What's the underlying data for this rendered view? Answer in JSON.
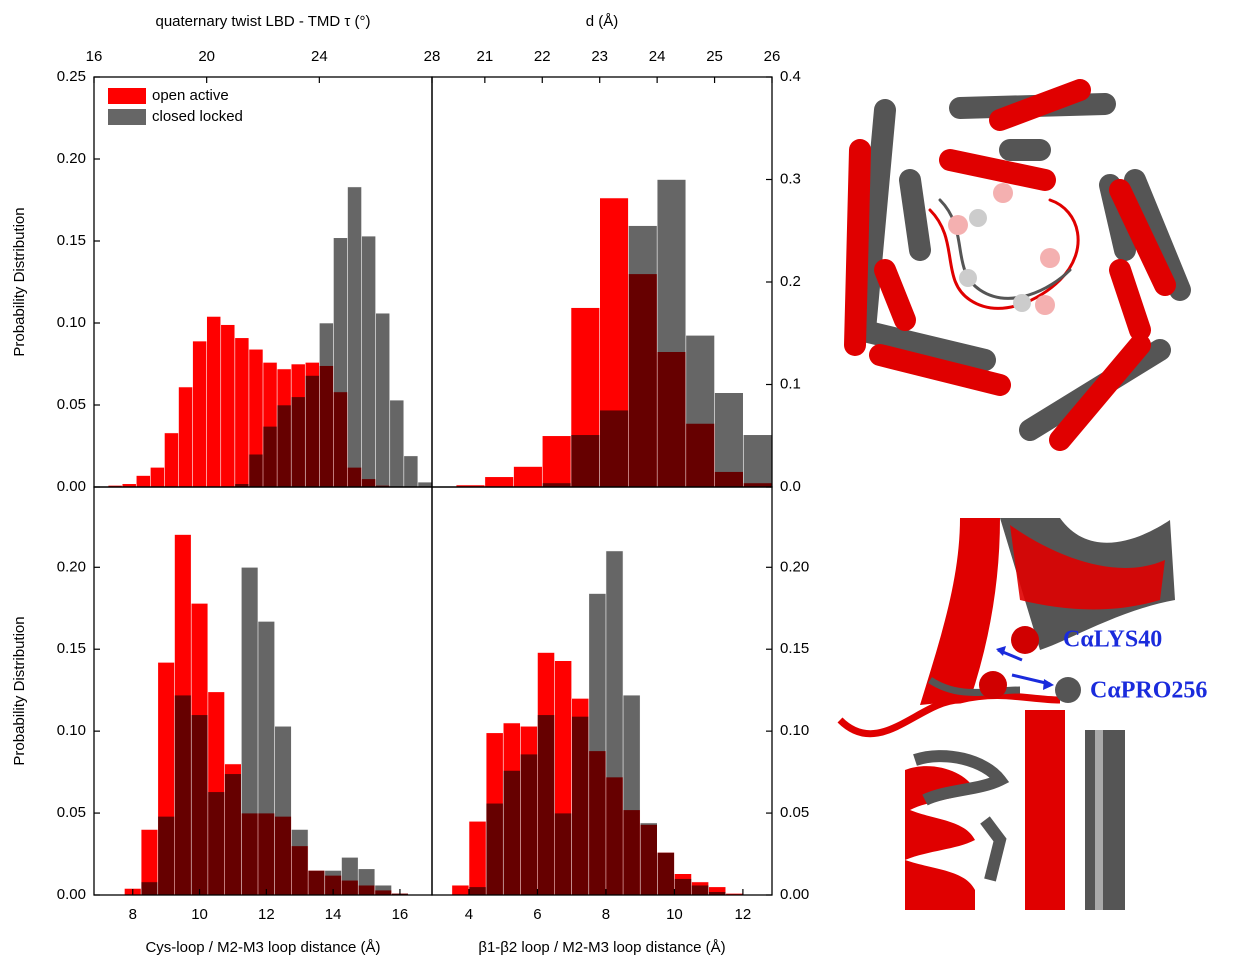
{
  "chart_data": [
    {
      "type": "histogram",
      "xlabel": "quaternary twist LBD - TMD τ (°)",
      "ylabel": "Probability Distribution",
      "legend": "upper left",
      "bins": [
        16.5,
        17,
        17.5,
        18,
        18.5,
        19,
        19.5,
        20,
        20.5,
        21,
        21.5,
        22,
        22.5,
        23,
        23.5,
        24,
        24.5,
        25,
        25.5,
        26,
        26.5,
        27,
        27.5,
        28
      ],
      "series": [
        {
          "name": "open active",
          "color": "#ff0000",
          "values": [
            0.001,
            0.002,
            0.007,
            0.012,
            0.033,
            0.061,
            0.089,
            0.104,
            0.099,
            0.091,
            0.084,
            0.076,
            0.072,
            0.075,
            0.076,
            0.074,
            0.058,
            0.012,
            0.005,
            0.001,
            0,
            0,
            0
          ]
        },
        {
          "name": "closed locked",
          "color": "#666666",
          "values": [
            0,
            0,
            0,
            0,
            0,
            0,
            0,
            0,
            0,
            0.002,
            0.02,
            0.037,
            0.05,
            0.055,
            0.068,
            0.1,
            0.152,
            0.183,
            0.153,
            0.106,
            0.053,
            0.019,
            0.003
          ]
        }
      ],
      "xlim": [
        16,
        28
      ],
      "xticks": [
        16,
        20,
        24,
        28
      ],
      "ylim": [
        0,
        0.25
      ],
      "yticks": [
        {
          "value": 0,
          "label": "0.00"
        },
        {
          "value": 0.05,
          "label": "0.05"
        },
        {
          "value": 0.1,
          "label": "0.10"
        },
        {
          "value": 0.15,
          "label": "0.15"
        },
        {
          "value": 0.2,
          "label": "0.20"
        },
        {
          "value": 0.25,
          "label": "0.25"
        }
      ]
    },
    {
      "type": "histogram",
      "xlabel": "d (Å)",
      "bins": [
        20.5,
        21,
        21.5,
        22,
        22.5,
        23,
        23.5,
        24,
        24.5,
        25,
        25.5,
        26
      ],
      "series": [
        {
          "color": "#ff0000",
          "values": [
            0.002,
            0.01,
            0.02,
            0.05,
            0.175,
            0.282,
            0.208,
            0.132,
            0.062,
            0.015,
            0.004
          ]
        },
        {
          "color": "#666666",
          "values": [
            0,
            0,
            0,
            0.004,
            0.051,
            0.075,
            0.255,
            0.3,
            0.148,
            0.092,
            0.051
          ]
        }
      ],
      "xlim": [
        20.08,
        26
      ],
      "xticks": [
        21,
        22,
        23,
        24,
        25,
        26
      ],
      "ylim": [
        0,
        0.4
      ],
      "yticks": [
        {
          "value": 0,
          "label": "0.0"
        },
        {
          "value": 0.1,
          "label": "0.1"
        },
        {
          "value": 0.2,
          "label": "0.2"
        },
        {
          "value": 0.3,
          "label": "0.3"
        },
        {
          "value": 0.4,
          "label": "0.4"
        }
      ]
    },
    {
      "type": "histogram",
      "xlabel": "Cys-loop / M2-M3 loop distance (Å)",
      "ylabel": "Probability Distribution",
      "bins": [
        7.75,
        8.25,
        8.75,
        9.25,
        9.75,
        10.25,
        10.75,
        11.25,
        11.75,
        12.25,
        12.75,
        13.25,
        13.75,
        14.25,
        14.75,
        15.25,
        15.75,
        16.25
      ],
      "series": [
        {
          "color": "#ff0000",
          "values": [
            0.004,
            0.04,
            0.142,
            0.22,
            0.178,
            0.124,
            0.08,
            0.05,
            0.05,
            0.048,
            0.03,
            0.015,
            0.012,
            0.009,
            0.006,
            0.003,
            0.001
          ]
        },
        {
          "color": "#666666",
          "values": [
            0,
            0.008,
            0.048,
            0.122,
            0.11,
            0.063,
            0.074,
            0.2,
            0.167,
            0.103,
            0.04,
            0.015,
            0.015,
            0.023,
            0.016,
            0.006,
            0.001
          ]
        }
      ],
      "xlim": [
        6.84,
        16.96
      ],
      "xticks": [
        8,
        10,
        12,
        14,
        16
      ],
      "ylim": [
        0,
        0.249
      ],
      "yticks": [
        {
          "value": 0,
          "label": "0.00"
        },
        {
          "value": 0.05,
          "label": "0.05"
        },
        {
          "value": 0.1,
          "label": "0.10"
        },
        {
          "value": 0.15,
          "label": "0.15"
        },
        {
          "value": 0.2,
          "label": "0.20"
        }
      ]
    },
    {
      "type": "histogram",
      "xlabel": "β1-β2 loop / M2-M3 loop distance (Å)",
      "bins": [
        3.5,
        4,
        4.5,
        5,
        5.5,
        6,
        6.5,
        7,
        7.5,
        8,
        8.5,
        9,
        9.5,
        10,
        10.5,
        11,
        11.5,
        12
      ],
      "series": [
        {
          "color": "#ff0000",
          "values": [
            0.006,
            0.045,
            0.099,
            0.105,
            0.103,
            0.148,
            0.143,
            0.12,
            0.088,
            0.072,
            0.052,
            0.043,
            0.026,
            0.013,
            0.008,
            0.005,
            0.001
          ]
        },
        {
          "color": "#666666",
          "values": [
            0,
            0.005,
            0.056,
            0.076,
            0.086,
            0.11,
            0.05,
            0.109,
            0.184,
            0.21,
            0.122,
            0.044,
            0.026,
            0.01,
            0.006,
            0.002,
            0
          ]
        }
      ],
      "xlim": [
        2.92,
        12.85
      ],
      "xticks": [
        4,
        6,
        8,
        10,
        12
      ],
      "ylim": [
        0,
        0.249
      ],
      "yticks": [
        {
          "value": 0,
          "label": "0.00"
        },
        {
          "value": 0.05,
          "label": "0.05"
        },
        {
          "value": 0.1,
          "label": "0.10"
        },
        {
          "value": 0.15,
          "label": "0.15"
        },
        {
          "value": 0.2,
          "label": "0.20"
        }
      ]
    }
  ],
  "annotations": [
    "CαLYS40",
    "CαPRO256"
  ]
}
